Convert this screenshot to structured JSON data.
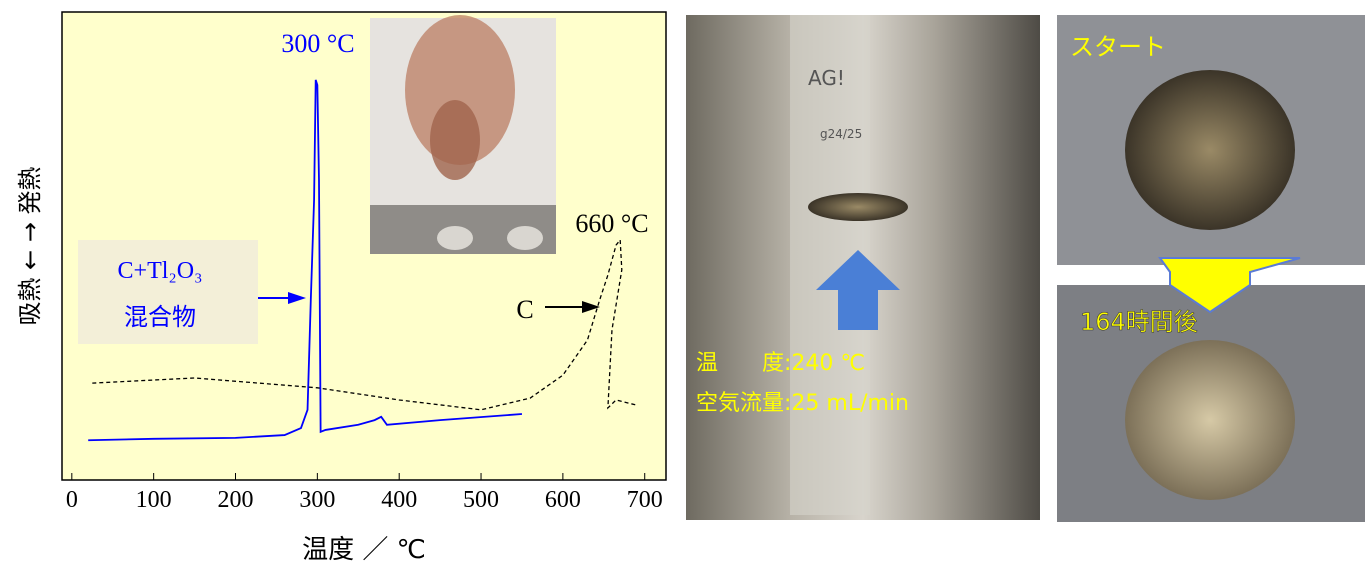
{
  "chart_data": {
    "type": "line",
    "y_label": "吸熱 ← → 発熱",
    "x_label": "温度 ／ ℃",
    "xlim": [
      -12,
      726
    ],
    "ylim": [
      0,
      100
    ],
    "xticks": [
      0,
      100,
      200,
      300,
      400,
      500,
      600,
      700
    ],
    "background": "#ffffcc",
    "series": [
      {
        "color": "#0000ff",
        "dashed": false,
        "x": [
          20,
          100,
          200,
          260,
          280,
          288,
          292,
          296,
          298,
          300,
          302,
          304,
          310,
          350,
          370,
          378,
          385,
          450,
          550
        ],
        "y": [
          8.5,
          8.8,
          9.0,
          9.6,
          11.1,
          15.0,
          38.5,
          59.8,
          85.5,
          84.4,
          64.1,
          10.3,
          10.7,
          11.8,
          12.8,
          13.5,
          11.8,
          12.8,
          14.1
        ]
      },
      {
        "color": "#000000",
        "dashed": true,
        "x": [
          25,
          150,
          300,
          400,
          500,
          560,
          600,
          630,
          645,
          655,
          665,
          670,
          672,
          660,
          655,
          665,
          690
        ],
        "y": [
          20.7,
          21.8,
          19.7,
          17.1,
          15.0,
          17.5,
          22.4,
          29.9,
          38.5,
          43.8,
          50.2,
          51.3,
          44.9,
          32.1,
          15.4,
          17.1,
          16.0
        ]
      }
    ],
    "annotations": [
      {
        "text": "300 °C",
        "color": "#0000ff"
      },
      {
        "text": "660 °C",
        "color": "#000000"
      },
      {
        "text": "C+Tl₂O₃",
        "color": "#0000ff"
      },
      {
        "text": "混合物",
        "color": "#0000ff"
      },
      {
        "text": "C",
        "color": "#000000"
      }
    ]
  },
  "photos": {
    "glass_mark": "AG!",
    "glass_size": "g24/25",
    "condition_temp": "温　　度:240 ℃",
    "condition_flow": "空気流量:25 mL/min",
    "start": "スタート",
    "after": "164時間後"
  }
}
